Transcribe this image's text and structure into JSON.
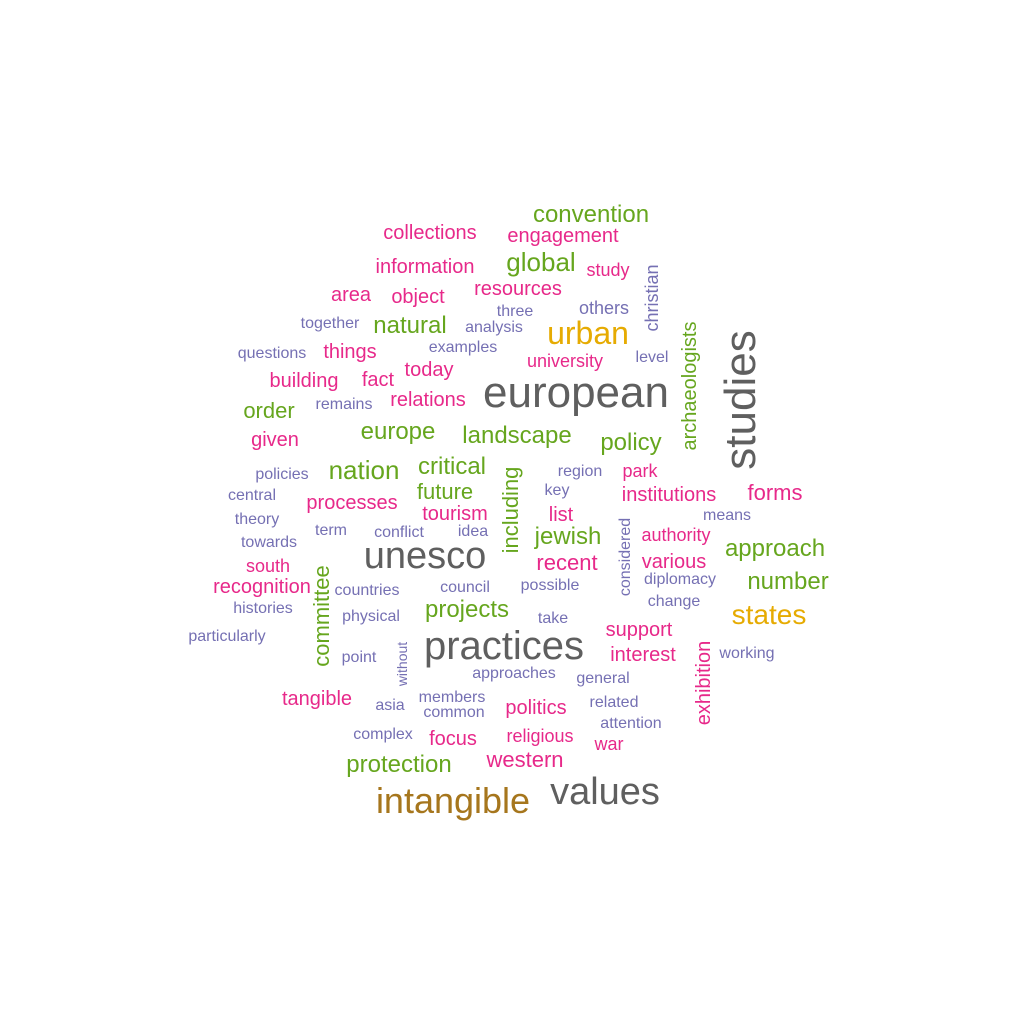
{
  "palette": {
    "gray": "#5f5f5f",
    "brown": "#a6761d",
    "gold": "#e6ab02",
    "green": "#66a61e",
    "magenta": "#e7298a",
    "purple": "#7570b3"
  },
  "words": [
    {
      "text": "european",
      "color": "gray",
      "vertical": false
    },
    {
      "text": "studies",
      "color": "gray",
      "vertical": true
    },
    {
      "text": "unesco",
      "color": "gray",
      "vertical": false
    },
    {
      "text": "practices",
      "color": "gray",
      "vertical": false
    },
    {
      "text": "values",
      "color": "gray",
      "vertical": false
    },
    {
      "text": "intangible",
      "color": "brown",
      "vertical": false
    },
    {
      "text": "urban",
      "color": "gold",
      "vertical": false
    },
    {
      "text": "states",
      "color": "gold",
      "vertical": false
    },
    {
      "text": "convention",
      "color": "green",
      "vertical": false
    },
    {
      "text": "global",
      "color": "green",
      "vertical": false
    },
    {
      "text": "natural",
      "color": "green",
      "vertical": false
    },
    {
      "text": "archaeologists",
      "color": "green",
      "vertical": true
    },
    {
      "text": "order",
      "color": "green",
      "vertical": false
    },
    {
      "text": "europe",
      "color": "green",
      "vertical": false
    },
    {
      "text": "landscape",
      "color": "green",
      "vertical": false
    },
    {
      "text": "policy",
      "color": "green",
      "vertical": false
    },
    {
      "text": "nation",
      "color": "green",
      "vertical": false
    },
    {
      "text": "critical",
      "color": "green",
      "vertical": false
    },
    {
      "text": "including",
      "color": "green",
      "vertical": true
    },
    {
      "text": "future",
      "color": "green",
      "vertical": false
    },
    {
      "text": "jewish",
      "color": "green",
      "vertical": false
    },
    {
      "text": "approach",
      "color": "green",
      "vertical": false
    },
    {
      "text": "number",
      "color": "green",
      "vertical": false
    },
    {
      "text": "committee",
      "color": "green",
      "vertical": true
    },
    {
      "text": "projects",
      "color": "green",
      "vertical": false
    },
    {
      "text": "protection",
      "color": "green",
      "vertical": false
    },
    {
      "text": "collections",
      "color": "magenta",
      "vertical": false
    },
    {
      "text": "engagement",
      "color": "magenta",
      "vertical": false
    },
    {
      "text": "information",
      "color": "magenta",
      "vertical": false
    },
    {
      "text": "study",
      "color": "magenta",
      "vertical": false
    },
    {
      "text": "area",
      "color": "magenta",
      "vertical": false
    },
    {
      "text": "object",
      "color": "magenta",
      "vertical": false
    },
    {
      "text": "resources",
      "color": "magenta",
      "vertical": false
    },
    {
      "text": "things",
      "color": "magenta",
      "vertical": false
    },
    {
      "text": "university",
      "color": "magenta",
      "vertical": false
    },
    {
      "text": "building",
      "color": "magenta",
      "vertical": false
    },
    {
      "text": "fact",
      "color": "magenta",
      "vertical": false
    },
    {
      "text": "today",
      "color": "magenta",
      "vertical": false
    },
    {
      "text": "relations",
      "color": "magenta",
      "vertical": false
    },
    {
      "text": "given",
      "color": "magenta",
      "vertical": false
    },
    {
      "text": "park",
      "color": "magenta",
      "vertical": false
    },
    {
      "text": "institutions",
      "color": "magenta",
      "vertical": false
    },
    {
      "text": "forms",
      "color": "magenta",
      "vertical": false
    },
    {
      "text": "processes",
      "color": "magenta",
      "vertical": false
    },
    {
      "text": "tourism",
      "color": "magenta",
      "vertical": false
    },
    {
      "text": "list",
      "color": "magenta",
      "vertical": false
    },
    {
      "text": "authority",
      "color": "magenta",
      "vertical": false
    },
    {
      "text": "recent",
      "color": "magenta",
      "vertical": false
    },
    {
      "text": "various",
      "color": "magenta",
      "vertical": false
    },
    {
      "text": "south",
      "color": "magenta",
      "vertical": false
    },
    {
      "text": "recognition",
      "color": "magenta",
      "vertical": false
    },
    {
      "text": "support",
      "color": "magenta",
      "vertical": false
    },
    {
      "text": "interest",
      "color": "magenta",
      "vertical": false
    },
    {
      "text": "exhibition",
      "color": "magenta",
      "vertical": true
    },
    {
      "text": "tangible",
      "color": "magenta",
      "vertical": false
    },
    {
      "text": "politics",
      "color": "magenta",
      "vertical": false
    },
    {
      "text": "focus",
      "color": "magenta",
      "vertical": false
    },
    {
      "text": "religious",
      "color": "magenta",
      "vertical": false
    },
    {
      "text": "war",
      "color": "magenta",
      "vertical": false
    },
    {
      "text": "western",
      "color": "magenta",
      "vertical": false
    },
    {
      "text": "christian",
      "color": "purple",
      "vertical": true
    },
    {
      "text": "others",
      "color": "purple",
      "vertical": false
    },
    {
      "text": "three",
      "color": "purple",
      "vertical": false
    },
    {
      "text": "together",
      "color": "purple",
      "vertical": false
    },
    {
      "text": "analysis",
      "color": "purple",
      "vertical": false
    },
    {
      "text": "questions",
      "color": "purple",
      "vertical": false
    },
    {
      "text": "examples",
      "color": "purple",
      "vertical": false
    },
    {
      "text": "level",
      "color": "purple",
      "vertical": false
    },
    {
      "text": "remains",
      "color": "purple",
      "vertical": false
    },
    {
      "text": "policies",
      "color": "purple",
      "vertical": false
    },
    {
      "text": "region",
      "color": "purple",
      "vertical": false
    },
    {
      "text": "central",
      "color": "purple",
      "vertical": false
    },
    {
      "text": "key",
      "color": "purple",
      "vertical": false
    },
    {
      "text": "theory",
      "color": "purple",
      "vertical": false
    },
    {
      "text": "term",
      "color": "purple",
      "vertical": false
    },
    {
      "text": "conflict",
      "color": "purple",
      "vertical": false
    },
    {
      "text": "idea",
      "color": "purple",
      "vertical": false
    },
    {
      "text": "means",
      "color": "purple",
      "vertical": false
    },
    {
      "text": "towards",
      "color": "purple",
      "vertical": false
    },
    {
      "text": "considered",
      "color": "purple",
      "vertical": true
    },
    {
      "text": "countries",
      "color": "purple",
      "vertical": false
    },
    {
      "text": "council",
      "color": "purple",
      "vertical": false
    },
    {
      "text": "possible",
      "color": "purple",
      "vertical": false
    },
    {
      "text": "diplomacy",
      "color": "purple",
      "vertical": false
    },
    {
      "text": "histories",
      "color": "purple",
      "vertical": false
    },
    {
      "text": "physical",
      "color": "purple",
      "vertical": false
    },
    {
      "text": "take",
      "color": "purple",
      "vertical": false
    },
    {
      "text": "change",
      "color": "purple",
      "vertical": false
    },
    {
      "text": "particularly",
      "color": "purple",
      "vertical": false
    },
    {
      "text": "point",
      "color": "purple",
      "vertical": false
    },
    {
      "text": "without",
      "color": "purple",
      "vertical": true
    },
    {
      "text": "working",
      "color": "purple",
      "vertical": false
    },
    {
      "text": "approaches",
      "color": "purple",
      "vertical": false
    },
    {
      "text": "general",
      "color": "purple",
      "vertical": false
    },
    {
      "text": "members",
      "color": "purple",
      "vertical": false
    },
    {
      "text": "asia",
      "color": "purple",
      "vertical": false
    },
    {
      "text": "related",
      "color": "purple",
      "vertical": false
    },
    {
      "text": "common",
      "color": "purple",
      "vertical": false
    },
    {
      "text": "attention",
      "color": "purple",
      "vertical": false
    },
    {
      "text": "complex",
      "color": "purple",
      "vertical": false
    }
  ]
}
